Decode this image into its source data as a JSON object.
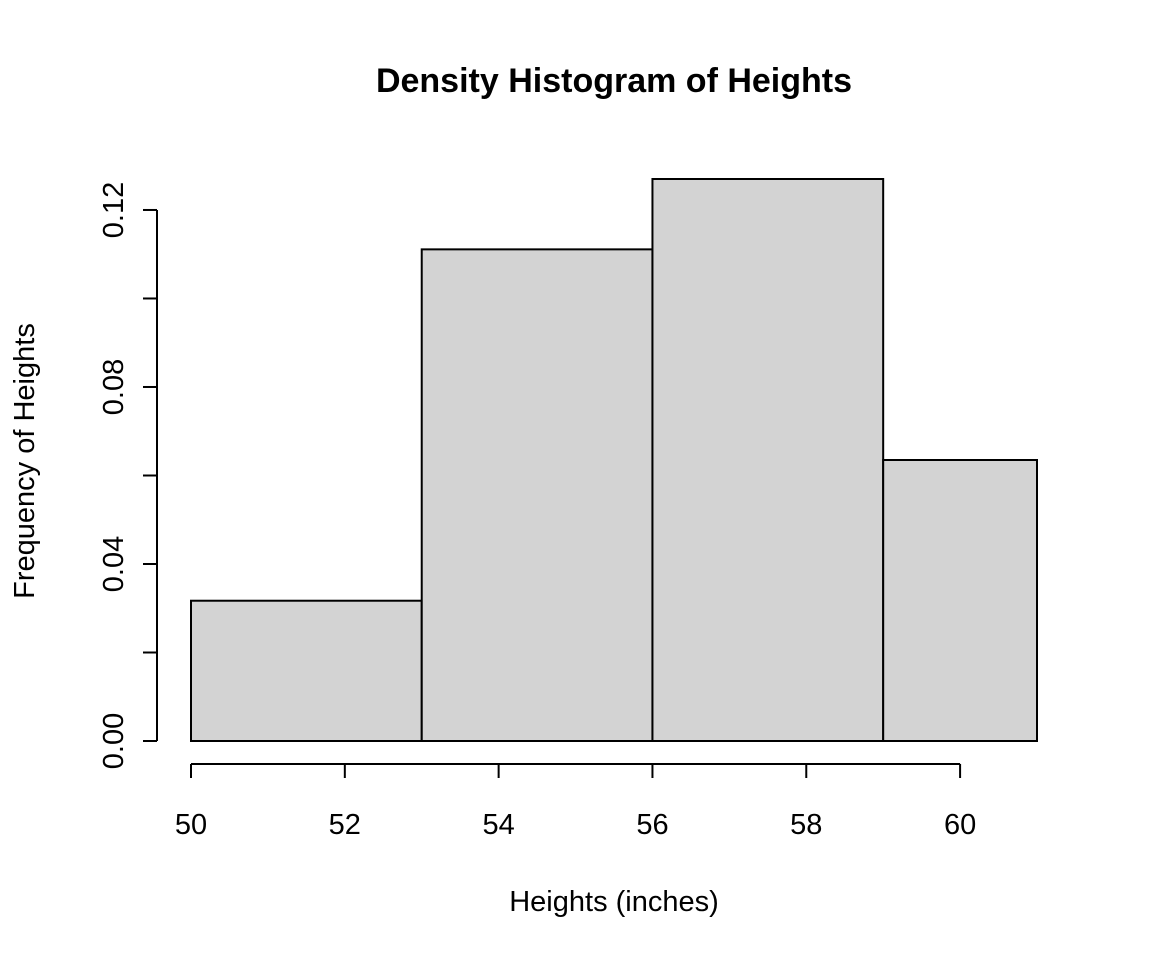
{
  "chart_data": {
    "type": "bar",
    "title": "Density Histogram of Heights",
    "xlabel": "Heights (inches)",
    "ylabel": "Frequency of Heights",
    "bins": [
      {
        "start": 50,
        "end": 53,
        "density": 0.0317
      },
      {
        "start": 53,
        "end": 56,
        "density": 0.1111
      },
      {
        "start": 56,
        "end": 59,
        "density": 0.127
      },
      {
        "start": 59,
        "end": 61,
        "density": 0.0635
      }
    ],
    "xlim": [
      50,
      61
    ],
    "ylim": [
      0,
      0.127
    ],
    "xticks": [
      50,
      52,
      54,
      56,
      58,
      60
    ],
    "xtick_labels": [
      "50",
      "52",
      "54",
      "56",
      "58",
      "60"
    ],
    "yticks": [
      0,
      0.02,
      0.04,
      0.06,
      0.08,
      0.1,
      0.12
    ],
    "ytick_labels": [
      "0.00",
      "",
      "0.04",
      "",
      "0.08",
      "",
      "0.12"
    ],
    "bar_color": "#d3d3d3",
    "edge_color": "#000000",
    "grid": false
  }
}
